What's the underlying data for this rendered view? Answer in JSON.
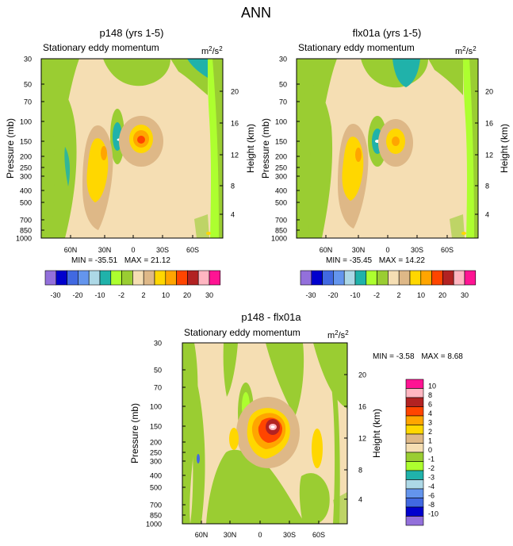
{
  "figure_title": "ANN",
  "units_base": "m",
  "units_sup1": "2",
  "units_mid": "/s",
  "units_sup2": "2",
  "chart_data": [
    {
      "type": "heatmap",
      "title": "p148 (yrs 1-5)",
      "subtitle": "Stationary eddy momentum",
      "ylabel": "Pressure (mb)",
      "ylabel_right": "Height (km)",
      "yticks": [
        "30",
        "50",
        "70",
        "100",
        "150",
        "200",
        "250",
        "300",
        "400",
        "500",
        "700",
        "850",
        "1000"
      ],
      "yticks_right": [
        "20",
        "16",
        "12",
        "8",
        "4"
      ],
      "xticks": [
        "60N",
        "30N",
        "0",
        "30S",
        "60S"
      ],
      "stats": {
        "min_label": "MIN =",
        "min": "-35.51",
        "max_label": "MAX =",
        "max": "21.12"
      }
    },
    {
      "type": "heatmap",
      "title": "flx01a (yrs 1-5)",
      "subtitle": "Stationary eddy momentum",
      "ylabel": "Pressure (mb)",
      "ylabel_right": "Height (km)",
      "yticks": [
        "30",
        "50",
        "70",
        "100",
        "150",
        "200",
        "250",
        "300",
        "400",
        "500",
        "700",
        "850",
        "1000"
      ],
      "yticks_right": [
        "20",
        "16",
        "12",
        "8",
        "4"
      ],
      "xticks": [
        "60N",
        "30N",
        "0",
        "30S",
        "60S"
      ],
      "stats": {
        "min_label": "MIN =",
        "min": "-35.45",
        "max_label": "MAX =",
        "max": "14.22"
      }
    },
    {
      "type": "heatmap",
      "title": "p148 - flx01a",
      "subtitle": "Stationary eddy momentum",
      "ylabel": "Pressure (mb)",
      "ylabel_right": "Height (km)",
      "yticks": [
        "30",
        "50",
        "70",
        "100",
        "150",
        "200",
        "250",
        "300",
        "400",
        "500",
        "700",
        "850",
        "1000"
      ],
      "yticks_right": [
        "20",
        "16",
        "12",
        "8",
        "4"
      ],
      "xticks": [
        "60N",
        "30N",
        "0",
        "30S",
        "60S"
      ],
      "stats": {
        "min_label": "MIN =",
        "min": "-3.58",
        "max_label": "MAX =",
        "max": "8.68"
      }
    }
  ],
  "colorbar_top": {
    "colors": [
      "#9370db",
      "#0000cd",
      "#4169e1",
      "#6495ed",
      "#add8e6",
      "#20b2aa",
      "#adff2f",
      "#9acd32",
      "#f5deb3",
      "#deb887",
      "#ffd700",
      "#ffa500",
      "#ff4500",
      "#b22222",
      "#ffb6c1",
      "#ff1493"
    ],
    "labels": [
      "-30",
      "-20",
      "-10",
      "-2",
      "2",
      "10",
      "20",
      "30"
    ]
  },
  "colorbar_diff": {
    "colors": [
      "#ff1493",
      "#ffb6c1",
      "#b22222",
      "#ff4500",
      "#ffa500",
      "#ffd700",
      "#deb887",
      "#f5deb3",
      "#9acd32",
      "#adff2f",
      "#20b2aa",
      "#add8e6",
      "#6495ed",
      "#4169e1",
      "#0000cd",
      "#9370db"
    ],
    "labels": [
      "10",
      "8",
      "6",
      "4",
      "3",
      "2",
      "1",
      "0",
      "-1",
      "-2",
      "-3",
      "-4",
      "-6",
      "-8",
      "-10"
    ]
  }
}
